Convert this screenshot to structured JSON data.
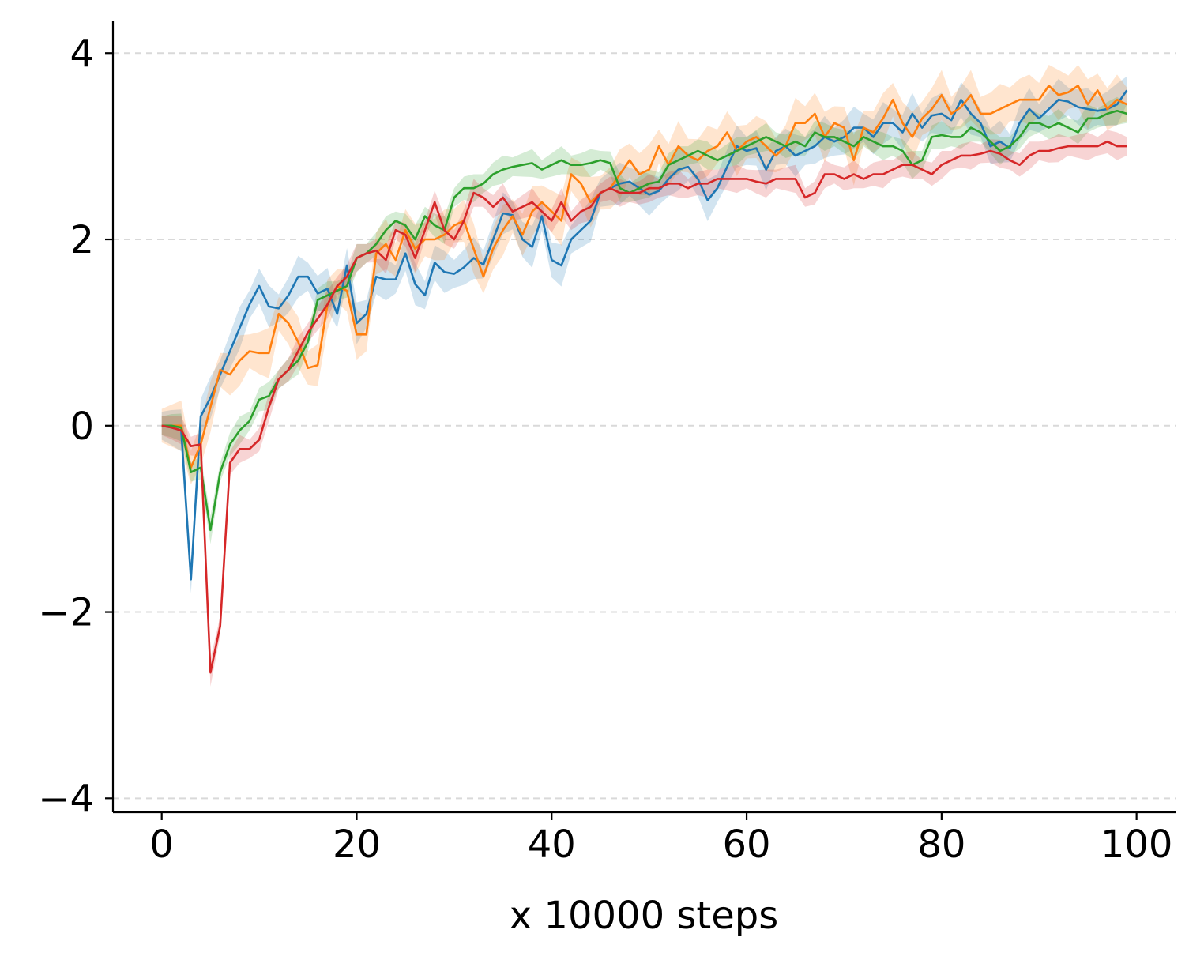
{
  "chart_data": {
    "type": "line",
    "title": "",
    "xlabel": "x 10000 steps",
    "ylabel": "",
    "xlim": [
      -5,
      104
    ],
    "ylim": [
      -4.15,
      4.35
    ],
    "xticks": [
      0,
      20,
      40,
      60,
      80,
      100
    ],
    "yticks": [
      -4,
      -2,
      0,
      2,
      4
    ],
    "xtick_labels": [
      "0",
      "20",
      "40",
      "60",
      "80",
      "100"
    ],
    "ytick_labels": [
      "−4",
      "−2",
      "0",
      "2",
      "4"
    ],
    "grid": "horizontal dashed",
    "legend": "none",
    "x": [
      0,
      1,
      2,
      3,
      4,
      5,
      6,
      7,
      8,
      9,
      10,
      11,
      12,
      13,
      14,
      15,
      16,
      17,
      18,
      19,
      20,
      21,
      22,
      23,
      24,
      25,
      26,
      27,
      28,
      29,
      30,
      31,
      32,
      33,
      34,
      35,
      36,
      37,
      38,
      39,
      40,
      41,
      42,
      43,
      44,
      45,
      46,
      47,
      48,
      49,
      50,
      51,
      52,
      53,
      54,
      55,
      56,
      57,
      58,
      59,
      60,
      61,
      62,
      63,
      64,
      65,
      66,
      67,
      68,
      69,
      70,
      71,
      72,
      73,
      74,
      75,
      76,
      77,
      78,
      79,
      80,
      81,
      82,
      83,
      84,
      85,
      86,
      87,
      88,
      89,
      90,
      91,
      92,
      93,
      94,
      95,
      96,
      97,
      98,
      99
    ],
    "series": [
      {
        "color": "#1f77b4",
        "band_width": 0.15,
        "values": [
          0.0,
          -0.02,
          -0.05,
          -1.65,
          0.1,
          0.3,
          0.55,
          0.8,
          1.05,
          1.3,
          1.5,
          1.28,
          1.26,
          1.4,
          1.6,
          1.6,
          1.42,
          1.47,
          1.2,
          1.72,
          1.1,
          1.2,
          1.6,
          1.57,
          1.57,
          1.85,
          1.52,
          1.4,
          1.75,
          1.65,
          1.63,
          1.7,
          1.8,
          1.73,
          2.0,
          2.28,
          2.26,
          2.0,
          1.92,
          2.25,
          1.78,
          1.72,
          2.0,
          2.1,
          2.2,
          2.5,
          2.55,
          2.6,
          2.62,
          2.55,
          2.48,
          2.52,
          2.65,
          2.75,
          2.78,
          2.65,
          2.42,
          2.55,
          2.78,
          3.0,
          2.95,
          2.98,
          2.75,
          2.95,
          3.0,
          2.9,
          2.95,
          3.0,
          3.1,
          3.05,
          3.1,
          3.2,
          3.2,
          3.1,
          3.25,
          3.25,
          3.15,
          3.35,
          3.2,
          3.33,
          3.35,
          3.28,
          3.5,
          3.35,
          3.25,
          3.0,
          3.05,
          2.98,
          3.25,
          3.4,
          3.3,
          3.4,
          3.5,
          3.48,
          3.42,
          3.4,
          3.38,
          3.4,
          3.45,
          3.6
        ]
      },
      {
        "color": "#ff7f0e",
        "band_width": 0.18,
        "values": [
          0.0,
          0.0,
          0.0,
          -0.45,
          -0.2,
          0.2,
          0.6,
          0.55,
          0.7,
          0.8,
          0.78,
          0.78,
          1.2,
          1.1,
          0.9,
          0.62,
          0.65,
          1.3,
          1.5,
          1.45,
          0.98,
          0.98,
          1.85,
          1.95,
          1.78,
          2.1,
          1.9,
          2.0,
          2.0,
          2.05,
          2.15,
          2.2,
          1.9,
          1.6,
          1.9,
          2.1,
          2.25,
          2.05,
          2.3,
          2.4,
          2.3,
          2.2,
          2.7,
          2.6,
          2.4,
          2.5,
          2.55,
          2.7,
          2.85,
          2.7,
          2.75,
          3.0,
          2.8,
          3.0,
          2.9,
          2.85,
          2.95,
          3.0,
          3.15,
          2.95,
          3.05,
          3.1,
          3.0,
          2.9,
          3.0,
          3.25,
          3.25,
          3.35,
          3.1,
          3.25,
          3.2,
          2.85,
          3.2,
          3.15,
          3.3,
          3.5,
          3.25,
          3.1,
          3.3,
          3.4,
          3.55,
          3.35,
          3.42,
          3.55,
          3.35,
          3.35,
          3.4,
          3.45,
          3.5,
          3.5,
          3.5,
          3.65,
          3.55,
          3.58,
          3.65,
          3.45,
          3.6,
          3.4,
          3.5,
          3.45
        ]
      },
      {
        "color": "#2ca02c",
        "band_width": 0.1,
        "values": [
          0.0,
          0.0,
          -0.02,
          -0.5,
          -0.45,
          -1.12,
          -0.5,
          -0.2,
          -0.05,
          0.05,
          0.28,
          0.32,
          0.5,
          0.6,
          0.7,
          0.9,
          1.35,
          1.4,
          1.45,
          1.5,
          1.8,
          1.85,
          1.95,
          2.1,
          2.2,
          2.15,
          2.0,
          2.25,
          2.15,
          2.1,
          2.45,
          2.55,
          2.55,
          2.6,
          2.7,
          2.75,
          2.78,
          2.8,
          2.82,
          2.75,
          2.8,
          2.85,
          2.8,
          2.8,
          2.82,
          2.85,
          2.82,
          2.55,
          2.5,
          2.55,
          2.6,
          2.62,
          2.8,
          2.85,
          2.9,
          2.95,
          2.9,
          2.85,
          2.9,
          2.95,
          3.0,
          3.05,
          3.1,
          3.05,
          3.0,
          3.05,
          3.0,
          3.15,
          3.1,
          3.1,
          3.05,
          3.0,
          3.1,
          3.05,
          3.0,
          3.0,
          2.95,
          2.8,
          2.85,
          3.1,
          3.12,
          3.1,
          3.1,
          3.2,
          3.15,
          3.05,
          2.95,
          3.0,
          3.1,
          3.25,
          3.25,
          3.2,
          3.25,
          3.2,
          3.15,
          3.3,
          3.3,
          3.35,
          3.38,
          3.35
        ]
      },
      {
        "color": "#d62728",
        "band_width": 0.1,
        "values": [
          0.0,
          -0.02,
          -0.05,
          -0.22,
          -0.2,
          -2.65,
          -2.15,
          -0.4,
          -0.25,
          -0.25,
          -0.15,
          0.2,
          0.5,
          0.6,
          0.8,
          1.0,
          1.15,
          1.3,
          1.5,
          1.6,
          1.8,
          1.85,
          1.88,
          1.78,
          2.1,
          2.05,
          1.8,
          2.1,
          2.4,
          2.1,
          2.0,
          2.2,
          2.5,
          2.45,
          2.35,
          2.45,
          2.3,
          2.35,
          2.4,
          2.3,
          2.2,
          2.4,
          2.2,
          2.3,
          2.35,
          2.5,
          2.55,
          2.5,
          2.5,
          2.5,
          2.55,
          2.55,
          2.6,
          2.6,
          2.55,
          2.6,
          2.6,
          2.65,
          2.65,
          2.65,
          2.65,
          2.62,
          2.6,
          2.65,
          2.65,
          2.65,
          2.45,
          2.5,
          2.7,
          2.7,
          2.65,
          2.7,
          2.65,
          2.7,
          2.7,
          2.75,
          2.8,
          2.8,
          2.75,
          2.7,
          2.8,
          2.85,
          2.9,
          2.9,
          2.92,
          2.95,
          2.92,
          2.85,
          2.8,
          2.9,
          2.95,
          2.95,
          2.98,
          3.0,
          3.0,
          3.0,
          3.0,
          3.05,
          3.0,
          3.0
        ]
      }
    ]
  }
}
